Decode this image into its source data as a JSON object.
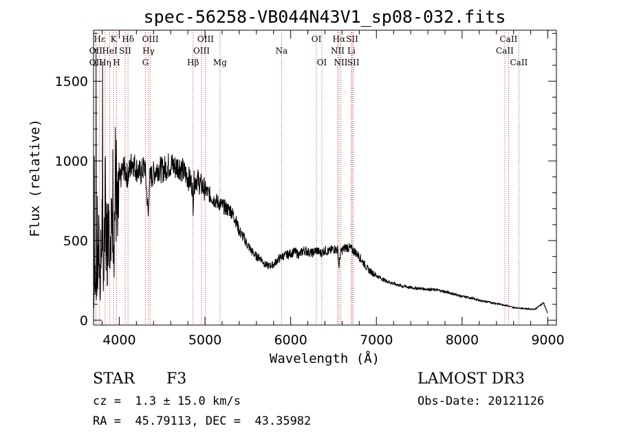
{
  "chart_data": {
    "type": "line",
    "title": "spec-56258-VB044N43V1_sp08-032.fits",
    "xlabel": "Wavelength (Å)",
    "ylabel": "Flux (relative)",
    "xlim": [
      3700,
      9100
    ],
    "ylim": [
      -30,
      1820
    ],
    "xticks": [
      4000,
      5000,
      6000,
      7000,
      8000,
      9000
    ],
    "yticks": [
      0,
      500,
      1000,
      1500
    ],
    "x_minor_step": 200,
    "y_minor_step": 100,
    "series": [
      {
        "name": "spectrum",
        "x": [
          3700,
          3720,
          3740,
          3760,
          3780,
          3800,
          3820,
          3840,
          3860,
          3880,
          3900,
          3920,
          3940,
          3960,
          3980,
          4000,
          4050,
          4100,
          4150,
          4200,
          4250,
          4300,
          4340,
          4350,
          4370,
          4400,
          4450,
          4500,
          4550,
          4600,
          4650,
          4700,
          4750,
          4800,
          4850,
          4861,
          4870,
          4900,
          4950,
          5000,
          5050,
          5100,
          5150,
          5200,
          5250,
          5300,
          5350,
          5400,
          5450,
          5500,
          5550,
          5600,
          5650,
          5700,
          5750,
          5800,
          5850,
          5900,
          5950,
          6000,
          6050,
          6100,
          6150,
          6200,
          6250,
          6300,
          6350,
          6400,
          6450,
          6500,
          6550,
          6563,
          6580,
          6600,
          6650,
          6700,
          6750,
          6800,
          6850,
          6900,
          6950,
          7000,
          7100,
          7200,
          7300,
          7400,
          7500,
          7600,
          7700,
          7800,
          7900,
          8000,
          8100,
          8200,
          8300,
          8400,
          8500,
          8600,
          8700,
          8800,
          8850,
          8900,
          8950,
          9000
        ],
        "values": [
          100,
          320,
          160,
          450,
          200,
          620,
          280,
          780,
          420,
          880,
          360,
          820,
          560,
          930,
          520,
          860,
          960,
          900,
          1000,
          950,
          920,
          970,
          640,
          880,
          900,
          920,
          960,
          940,
          960,
          980,
          960,
          970,
          930,
          900,
          850,
          720,
          860,
          890,
          850,
          820,
          790,
          760,
          740,
          720,
          700,
          690,
          640,
          560,
          520,
          470,
          430,
          400,
          390,
          350,
          340,
          350,
          380,
          400,
          410,
          420,
          430,
          410,
          440,
          430,
          420,
          440,
          420,
          440,
          430,
          450,
          440,
          330,
          420,
          440,
          460,
          450,
          430,
          400,
          360,
          320,
          300,
          280,
          250,
          230,
          215,
          205,
          200,
          195,
          190,
          180,
          165,
          150,
          140,
          125,
          115,
          105,
          95,
          80,
          75,
          70,
          70,
          90,
          110,
          40
        ]
      }
    ],
    "spectral_lines": [
      {
        "label": "Hε",
        "x": 3770,
        "row": 1
      },
      {
        "label": "OII",
        "x": 3727,
        "row": 2
      },
      {
        "label": "OII",
        "x": 3727,
        "row": 3
      },
      {
        "label": "Hη",
        "x": 3835,
        "row": 3
      },
      {
        "label": "K",
        "x": 3934,
        "row": 1
      },
      {
        "label": "HeI",
        "x": 3889,
        "row": 2
      },
      {
        "label": "SII",
        "x": 4069,
        "row": 2
      },
      {
        "label": "Hδ",
        "x": 4102,
        "row": 1
      },
      {
        "label": "H",
        "x": 3969,
        "row": 3
      },
      {
        "label": "OIII",
        "x": 4363,
        "row": 1
      },
      {
        "label": "Hγ",
        "x": 4341,
        "row": 2
      },
      {
        "label": "G",
        "x": 4305,
        "row": 3
      },
      {
        "label": "Hβ",
        "x": 4861,
        "row": 3
      },
      {
        "label": "OIII",
        "x": 5007,
        "row": 1
      },
      {
        "label": "OIII",
        "x": 4959,
        "row": 2
      },
      {
        "label": "Mg",
        "x": 5175,
        "row": 3
      },
      {
        "label": "Na",
        "x": 5894,
        "row": 2
      },
      {
        "label": "OI",
        "x": 6300,
        "row": 1
      },
      {
        "label": "OI",
        "x": 6364,
        "row": 3
      },
      {
        "label": "Hα",
        "x": 6563,
        "row": 1
      },
      {
        "label": "NII",
        "x": 6548,
        "row": 2
      },
      {
        "label": "NII",
        "x": 6584,
        "row": 3
      },
      {
        "label": "SII",
        "x": 6717,
        "row": 1
      },
      {
        "label": "Li",
        "x": 6708,
        "row": 2
      },
      {
        "label": "SII",
        "x": 6731,
        "row": 3
      },
      {
        "label": "CaII",
        "x": 8542,
        "row": 1
      },
      {
        "label": "CaII",
        "x": 8498,
        "row": 2
      },
      {
        "label": "CaII",
        "x": 8662,
        "row": 3
      }
    ]
  },
  "footer": {
    "object_class": "STAR",
    "subclass": "F3",
    "redshift": "cz =  1.3 ± 15.0 km/s",
    "coords": "RA =  45.79113, DEC =  43.35982",
    "survey": "LAMOST DR3",
    "obs_date": "Obs-Date: 20121126"
  }
}
